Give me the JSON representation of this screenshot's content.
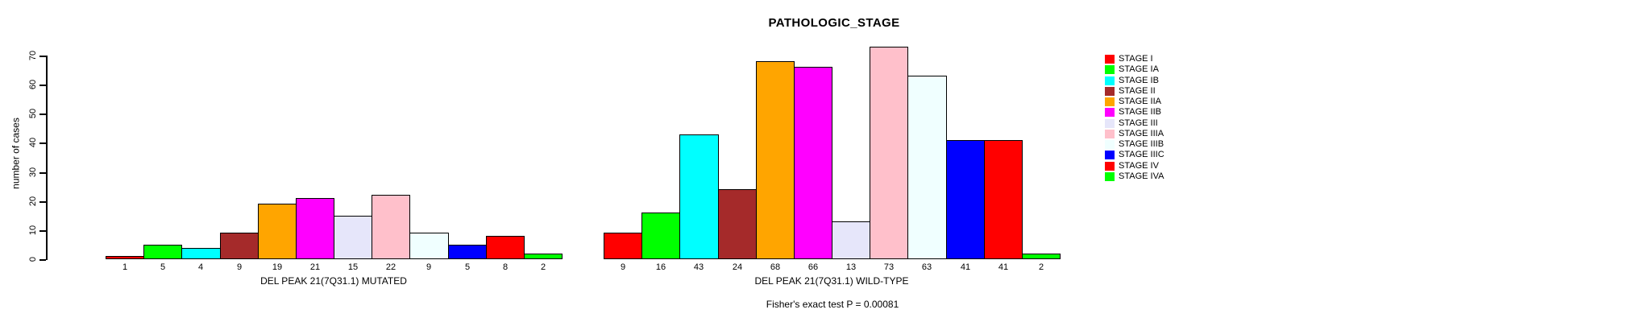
{
  "chart_data": {
    "type": "bar",
    "title": "PATHOLOGIC_STAGE",
    "ylabel": "number of cases",
    "footnote": "Fisher's exact test P = 0.00081",
    "ylim": [
      0,
      70
    ],
    "yticks": [
      0,
      10,
      20,
      30,
      40,
      50,
      60,
      70
    ],
    "grid": false,
    "legend_position": "right",
    "categories": [
      "STAGE I",
      "STAGE IA",
      "STAGE IB",
      "STAGE II",
      "STAGE IIA",
      "STAGE IIB",
      "STAGE III",
      "STAGE IIIA",
      "STAGE IIIB",
      "STAGE IIIC",
      "STAGE IV",
      "STAGE IVA"
    ],
    "colors": [
      "#FF0000",
      "#00FF00",
      "#00FFFF",
      "#A52A2A",
      "#FFA500",
      "#FF00FF",
      "#E6E6FA",
      "#FFC0CB",
      "#F0FFFF",
      "#0000FF",
      "#FF0000",
      "#00FF00"
    ],
    "series": [
      {
        "name": "DEL PEAK 21(7Q31.1) MUTATED",
        "values": [
          1,
          5,
          4,
          9,
          19,
          21,
          15,
          22,
          9,
          5,
          8,
          2
        ]
      },
      {
        "name": "DEL PEAK 21(7Q31.1) WILD-TYPE",
        "values": [
          9,
          16,
          43,
          24,
          68,
          66,
          13,
          73,
          63,
          41,
          41,
          2
        ]
      }
    ],
    "bar_outline_color": "#000000"
  }
}
